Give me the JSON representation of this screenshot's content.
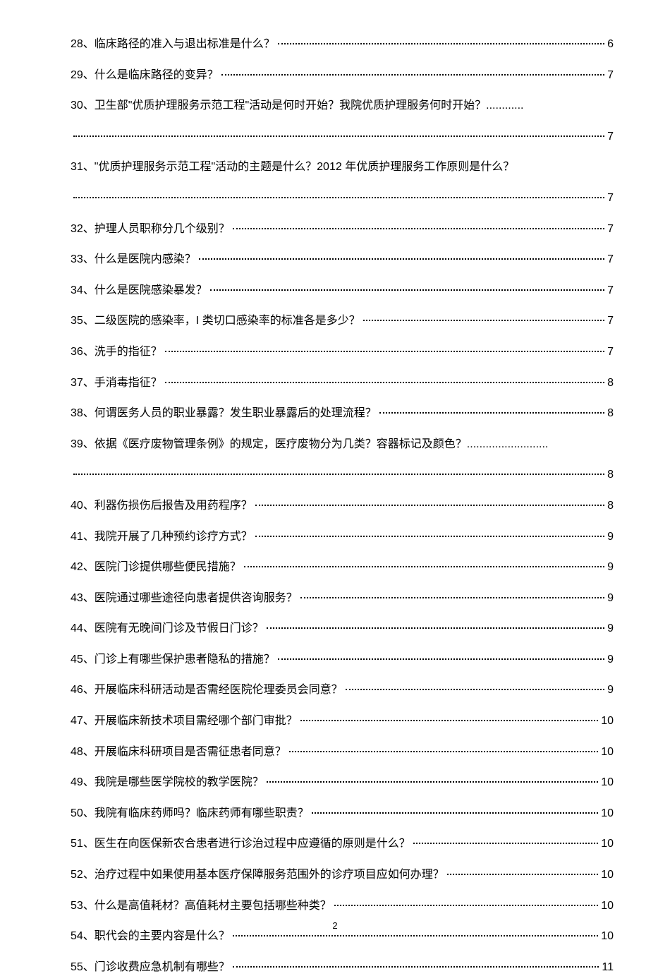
{
  "toc": {
    "entries": [
      {
        "num": "28",
        "text": "临床路径的准入与退出标准是什么？",
        "page": "6",
        "type": "simple"
      },
      {
        "num": "29",
        "text": "什么是临床路径的变异？",
        "page": "7",
        "type": "simple"
      },
      {
        "num": "30",
        "text": "卫生部\"优质护理服务示范工程\"活动是何时开始？我院优质护理服务何时开始？",
        "page": "7",
        "type": "multiline",
        "trail": "............"
      },
      {
        "num": "31",
        "text": "\"优质护理服务示范工程\"活动的主题是什么？2012 年优质护理服务工作原则是什么？",
        "page": "7",
        "type": "multiline",
        "trail": ""
      },
      {
        "num": "32",
        "text": "护理人员职称分几个级别？",
        "page": "7",
        "type": "simple"
      },
      {
        "num": "33",
        "text": "什么是医院内感染？",
        "page": "7",
        "type": "simple"
      },
      {
        "num": "34",
        "text": "什么是医院感染暴发？",
        "page": "7",
        "type": "simple"
      },
      {
        "num": "35",
        "text": "二级医院的感染率，I 类切口感染率的标准各是多少？",
        "page": "7",
        "type": "simple"
      },
      {
        "num": "36",
        "text": "洗手的指征？",
        "page": "7",
        "type": "simple"
      },
      {
        "num": "37",
        "text": "手消毒指征？",
        "page": "8",
        "type": "simple"
      },
      {
        "num": "38",
        "text": "何谓医务人员的职业暴露？发生职业暴露后的处理流程？",
        "page": "8",
        "type": "simple"
      },
      {
        "num": "39",
        "text": "依据《医疗废物管理条例》的规定，医疗废物分为几类？容器标记及颜色？",
        "page": "8",
        "type": "multiline",
        "trail": ".........................."
      },
      {
        "num": "40",
        "text": "利器伤损伤后报告及用药程序？",
        "page": "8",
        "type": "simple"
      },
      {
        "num": "41",
        "text": "我院开展了几种预约诊疗方式？",
        "page": "9",
        "type": "simple"
      },
      {
        "num": "42",
        "text": "医院门诊提供哪些便民措施？",
        "page": "9",
        "type": "simple"
      },
      {
        "num": "43",
        "text": "医院通过哪些途径向患者提供咨询服务？",
        "page": "9",
        "type": "simple"
      },
      {
        "num": "44",
        "text": "医院有无晚间门诊及节假日门诊？",
        "page": "9",
        "type": "simple"
      },
      {
        "num": "45",
        "text": "门诊上有哪些保护患者隐私的措施？",
        "page": "9",
        "type": "simple"
      },
      {
        "num": "46",
        "text": "开展临床科研活动是否需经医院伦理委员会同意？",
        "page": "9",
        "type": "simple"
      },
      {
        "num": "47",
        "text": "开展临床新技术项目需经哪个部门审批？",
        "page": "10",
        "type": "simple"
      },
      {
        "num": "48",
        "text": "开展临床科研项目是否需征患者同意？",
        "page": "10",
        "type": "simple"
      },
      {
        "num": "49",
        "text": "我院是哪些医学院校的教学医院？",
        "page": "10",
        "type": "simple"
      },
      {
        "num": "50",
        "text": "我院有临床药师吗？临床药师有哪些职责？",
        "page": "10",
        "type": "simple"
      },
      {
        "num": "51",
        "text": "医生在向医保新农合患者进行诊治过程中应遵循的原则是什么？",
        "page": "10",
        "type": "simple"
      },
      {
        "num": "52",
        "text": "治疗过程中如果使用基本医疗保障服务范围外的诊疗项目应如何办理？",
        "page": "10",
        "type": "simple"
      },
      {
        "num": "53",
        "text": "什么是高值耗材？高值耗材主要包括哪些种类？",
        "page": "10",
        "type": "simple"
      },
      {
        "num": "54",
        "text": "职代会的主要内容是什么？",
        "page": "10",
        "type": "simple"
      },
      {
        "num": "55",
        "text": "门诊收费应急机制有哪些？",
        "page": "11",
        "type": "simple"
      }
    ]
  },
  "pageNumber": "2",
  "colors": {
    "text": "#000000",
    "background": "#ffffff"
  },
  "fonts": {
    "body_size": 16,
    "page_num_size": 13
  }
}
